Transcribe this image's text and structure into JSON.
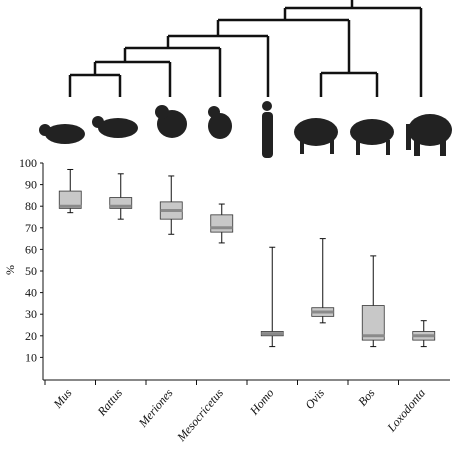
{
  "chart_data": {
    "type": "box",
    "y_label": "%",
    "categories": [
      "Mus",
      "Rattus",
      "Meriones",
      "Mesocricetus",
      "Homo",
      "Ovis",
      "Bos",
      "Loxodonta"
    ],
    "boxes": [
      {
        "min": 77,
        "q1": 79,
        "median": 80,
        "q3": 87,
        "max": 97
      },
      {
        "min": 74,
        "q1": 79,
        "median": 80,
        "q3": 84,
        "max": 95
      },
      {
        "min": 67,
        "q1": 74,
        "median": 78,
        "q3": 82,
        "max": 94
      },
      {
        "min": 63,
        "q1": 68,
        "median": 70,
        "q3": 76,
        "max": 81
      },
      {
        "min": 15,
        "q1": 20,
        "median": 21,
        "q3": 22,
        "max": 61
      },
      {
        "min": 26,
        "q1": 29,
        "median": 31,
        "q3": 33,
        "max": 65
      },
      {
        "min": 15,
        "q1": 18,
        "median": 20,
        "q3": 34,
        "max": 57
      },
      {
        "min": 15,
        "q1": 18,
        "median": 20,
        "q3": 22,
        "max": 27
      }
    ],
    "color": "#c8c8c8",
    "median_color": "#8a8a8a",
    "ylim": [
      0,
      100
    ],
    "yticks": [
      10,
      20,
      30,
      40,
      50,
      60,
      70,
      80,
      90,
      100
    ]
  }
}
